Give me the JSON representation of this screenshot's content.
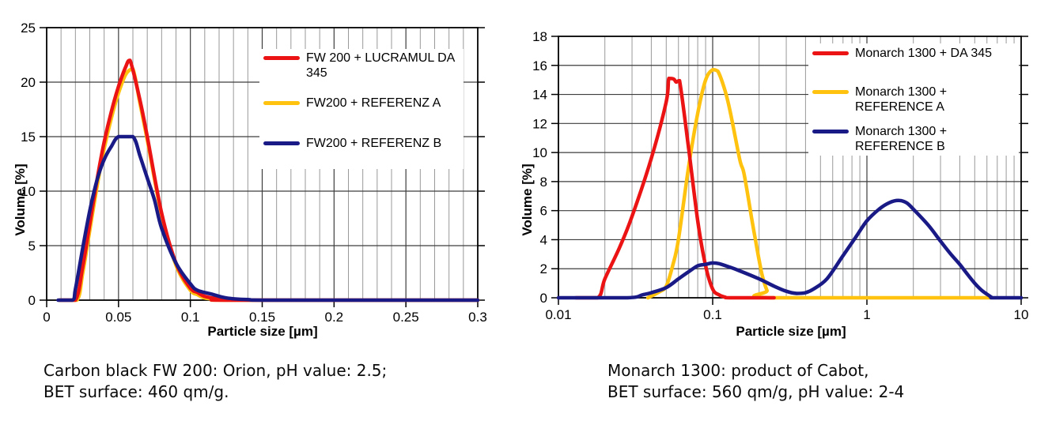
{
  "figure": {
    "background": "#ffffff",
    "grid_minor_color": "#999999",
    "grid_major_color": "#3d3d3d",
    "axis_color": "#000000"
  },
  "chart_data": [
    {
      "type": "line",
      "title": "",
      "xlabel": "Particle size [µm]",
      "ylabel": "Volume [%]",
      "x_scale": "linear",
      "xlim": [
        0,
        0.3
      ],
      "ylim": [
        0,
        25
      ],
      "x_tick_values": [
        0,
        0.05,
        0.1,
        0.15,
        0.2,
        0.25,
        0.3
      ],
      "x_tick_labels": [
        "0",
        "0.05",
        "0.1",
        "0.15",
        "0.2",
        "0.25",
        "0.3"
      ],
      "x_minor_step": 0.01,
      "y_tick_step": 5,
      "y_tick_labels": [
        "0",
        "5",
        "10",
        "15",
        "20",
        "25"
      ],
      "grid": "on",
      "legend_position": "upper-right-inside",
      "legend": [
        {
          "color": "#EB1313",
          "lines": [
            "FW 200 + LUCRAMUL DA",
            "345"
          ]
        },
        {
          "color": "#FFC20E",
          "lines": [
            "FW200 + REFERENZ A"
          ]
        },
        {
          "color": "#1A1A87",
          "lines": [
            "FW200 + REFERENZ B"
          ]
        }
      ],
      "series": [
        {
          "name": "FW200 + REFERENZ A",
          "color": "#FFC20E",
          "points": [
            [
              0.009,
              0
            ],
            [
              0.021,
              0
            ],
            [
              0.025,
              2.4
            ],
            [
              0.03,
              6.4
            ],
            [
              0.035,
              10.4
            ],
            [
              0.04,
              13.9
            ],
            [
              0.045,
              16.7
            ],
            [
              0.05,
              19.0
            ],
            [
              0.055,
              20.7
            ],
            [
              0.06,
              21.2
            ],
            [
              0.065,
              18.0
            ],
            [
              0.07,
              14.7
            ],
            [
              0.08,
              7.8
            ],
            [
              0.09,
              3.2
            ],
            [
              0.1,
              0.9
            ],
            [
              0.105,
              0.5
            ],
            [
              0.11,
              0.2
            ],
            [
              0.12,
              0.05
            ],
            [
              0.13,
              0
            ],
            [
              0.3,
              0
            ]
          ]
        },
        {
          "name": "FW 200 + LUCRAMUL DA 345",
          "color": "#EB1313",
          "points": [
            [
              0.009,
              0
            ],
            [
              0.02,
              0
            ],
            [
              0.025,
              3.0
            ],
            [
              0.03,
              7.0
            ],
            [
              0.035,
              11.0
            ],
            [
              0.04,
              14.5
            ],
            [
              0.045,
              17.3
            ],
            [
              0.05,
              19.6
            ],
            [
              0.055,
              21.4
            ],
            [
              0.058,
              22.0
            ],
            [
              0.065,
              18.3
            ],
            [
              0.07,
              15.0
            ],
            [
              0.08,
              8.0
            ],
            [
              0.09,
              3.4
            ],
            [
              0.1,
              1.1
            ],
            [
              0.105,
              0.7
            ],
            [
              0.11,
              0.35
            ],
            [
              0.12,
              0.1
            ],
            [
              0.13,
              0
            ],
            [
              0.3,
              0
            ]
          ]
        },
        {
          "name": "FW200 + REFERENZ B",
          "color": "#1A1A87",
          "points": [
            [
              0.008,
              0
            ],
            [
              0.018,
              0
            ],
            [
              0.02,
              1.0
            ],
            [
              0.025,
              4.7
            ],
            [
              0.03,
              8.2
            ],
            [
              0.035,
              11.0
            ],
            [
              0.04,
              12.9
            ],
            [
              0.045,
              14.1
            ],
            [
              0.05,
              15.0
            ],
            [
              0.06,
              15.0
            ],
            [
              0.065,
              13.2
            ],
            [
              0.07,
              11.2
            ],
            [
              0.075,
              9.2
            ],
            [
              0.08,
              6.6
            ],
            [
              0.09,
              3.4
            ],
            [
              0.1,
              1.5
            ],
            [
              0.105,
              0.9
            ],
            [
              0.115,
              0.55
            ],
            [
              0.125,
              0.2
            ],
            [
              0.14,
              0.05
            ],
            [
              0.16,
              0
            ],
            [
              0.3,
              0
            ]
          ]
        }
      ],
      "caption_lines": [
        "Carbon black FW 200: Orion, pH value: 2.5;",
        "BET surface: 460 qm/g."
      ]
    },
    {
      "type": "line",
      "title": "",
      "xlabel": "Particle size [µm]",
      "ylabel": "Volume [%]",
      "x_scale": "log",
      "xlim": [
        0.01,
        10
      ],
      "ylim": [
        0,
        18
      ],
      "x_tick_values": [
        0.01,
        0.1,
        1,
        10
      ],
      "x_tick_labels": [
        "0.01",
        "0.1",
        "1",
        "10"
      ],
      "y_tick_step": 2,
      "y_tick_labels": [
        "0",
        "2",
        "4",
        "6",
        "8",
        "10",
        "12",
        "14",
        "16",
        "18"
      ],
      "grid": "on",
      "legend_position": "upper-right-inside",
      "legend": [
        {
          "color": "#EB1313",
          "lines": [
            "Monarch 1300 + DA 345"
          ]
        },
        {
          "color": "#FFC20E",
          "lines": [
            "Monarch 1300 +",
            "REFERENCE A"
          ]
        },
        {
          "color": "#1A1A87",
          "lines": [
            "Monarch 1300 +",
            "REFERENCE B"
          ]
        }
      ],
      "series": [
        {
          "name": "Monarch 1300 + REFERENCE A",
          "color": "#FFC20E",
          "points": [
            [
              0.038,
              0
            ],
            [
              0.045,
              0.4
            ],
            [
              0.05,
              0.8
            ],
            [
              0.055,
              2.2
            ],
            [
              0.06,
              4.0
            ],
            [
              0.07,
              9.1
            ],
            [
              0.08,
              12.7
            ],
            [
              0.09,
              15.0
            ],
            [
              0.1,
              15.7
            ],
            [
              0.108,
              15.6
            ],
            [
              0.12,
              14.3
            ],
            [
              0.13,
              12.8
            ],
            [
              0.15,
              9.5
            ],
            [
              0.16,
              8.5
            ],
            [
              0.18,
              5.3
            ],
            [
              0.19,
              3.9
            ],
            [
              0.2,
              2.6
            ],
            [
              0.21,
              1.5
            ],
            [
              0.225,
              0.5
            ],
            [
              0.24,
              0
            ],
            [
              6.3,
              0
            ]
          ]
        },
        {
          "name": "Monarch 1300 + DA 345",
          "color": "#EB1313",
          "points": [
            [
              0.013,
              0
            ],
            [
              0.018,
              0
            ],
            [
              0.02,
              1.3
            ],
            [
              0.025,
              3.5
            ],
            [
              0.03,
              5.6
            ],
            [
              0.04,
              9.6
            ],
            [
              0.05,
              13.5
            ],
            [
              0.052,
              15.1
            ],
            [
              0.056,
              15.05
            ],
            [
              0.058,
              14.85
            ],
            [
              0.061,
              14.95
            ],
            [
              0.07,
              10.2
            ],
            [
              0.08,
              5.3
            ],
            [
              0.09,
              2.2
            ],
            [
              0.1,
              0.6
            ],
            [
              0.11,
              0.2
            ],
            [
              0.12,
              0.05
            ],
            [
              0.13,
              0
            ],
            [
              0.25,
              0
            ]
          ]
        },
        {
          "name": "Monarch 1300 + REFERENCE B",
          "color": "#1A1A87",
          "points": [
            [
              0.01,
              0
            ],
            [
              0.028,
              0
            ],
            [
              0.035,
              0.2
            ],
            [
              0.04,
              0.35
            ],
            [
              0.05,
              0.7
            ],
            [
              0.06,
              1.3
            ],
            [
              0.07,
              1.8
            ],
            [
              0.08,
              2.2
            ],
            [
              0.09,
              2.3
            ],
            [
              0.1,
              2.4
            ],
            [
              0.11,
              2.35
            ],
            [
              0.13,
              2.1
            ],
            [
              0.15,
              1.85
            ],
            [
              0.2,
              1.3
            ],
            [
              0.25,
              0.8
            ],
            [
              0.3,
              0.45
            ],
            [
              0.35,
              0.3
            ],
            [
              0.4,
              0.35
            ],
            [
              0.45,
              0.6
            ],
            [
              0.55,
              1.3
            ],
            [
              0.7,
              2.9
            ],
            [
              0.85,
              4.2
            ],
            [
              1.0,
              5.3
            ],
            [
              1.2,
              6.1
            ],
            [
              1.4,
              6.55
            ],
            [
              1.6,
              6.7
            ],
            [
              1.8,
              6.55
            ],
            [
              2.0,
              6.1
            ],
            [
              2.5,
              5.0
            ],
            [
              3.0,
              3.9
            ],
            [
              3.5,
              3.0
            ],
            [
              4.0,
              2.3
            ],
            [
              4.5,
              1.6
            ],
            [
              5.0,
              1.0
            ],
            [
              5.5,
              0.55
            ],
            [
              6.0,
              0.25
            ],
            [
              6.4,
              0.05
            ],
            [
              6.6,
              0
            ],
            [
              10,
              0
            ]
          ]
        }
      ],
      "caption_lines": [
        "Monarch 1300: product of Cabot,",
        "BET surface: 560 qm/g, pH value: 2-4"
      ]
    }
  ]
}
